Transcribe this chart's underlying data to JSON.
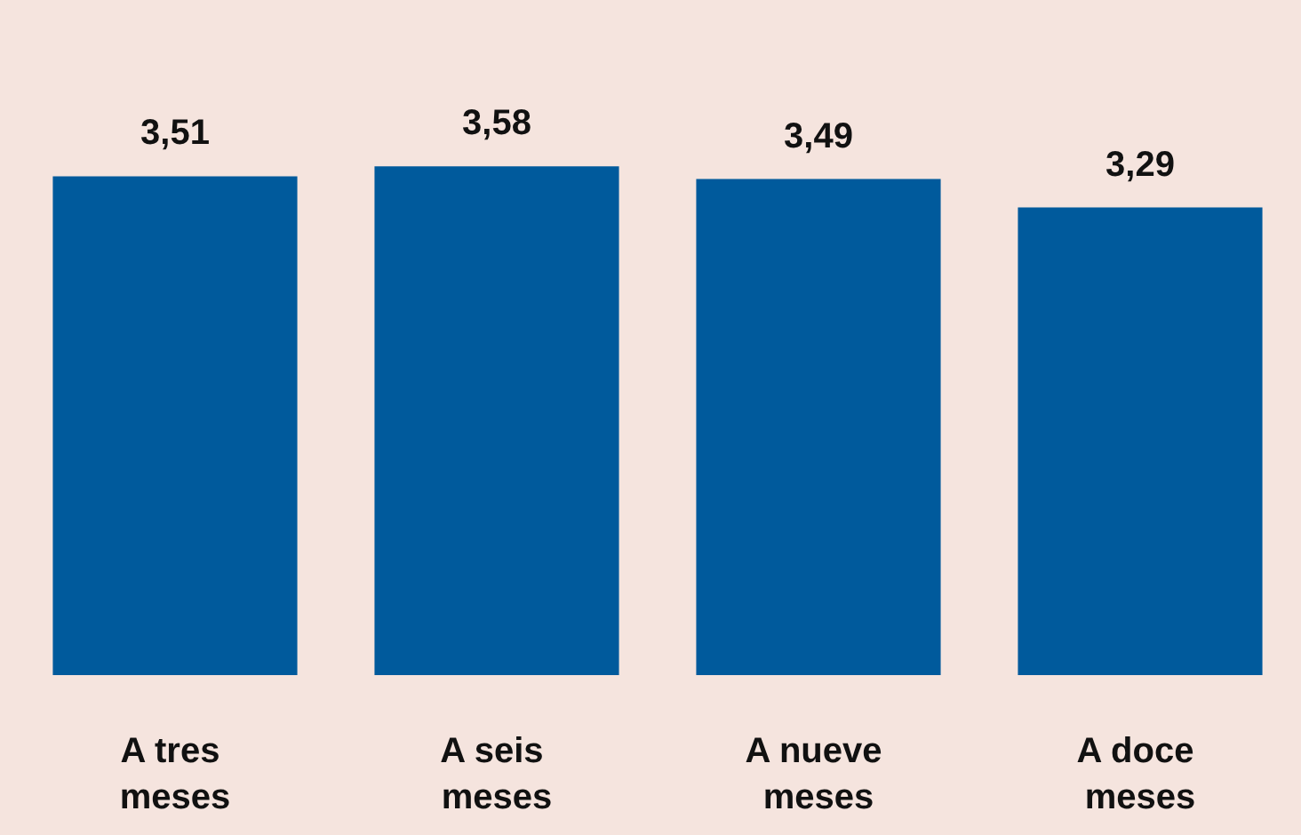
{
  "chart_data": {
    "type": "bar",
    "categories": [
      "A tres meses",
      "A seis meses",
      "A nueve meses",
      "A doce meses"
    ],
    "values": [
      3.51,
      3.58,
      3.49,
      3.29
    ],
    "value_labels": [
      "3,51",
      "3,58",
      "3,49",
      "3,29"
    ],
    "color": "#005a9c",
    "tick_labels": "x"
  }
}
